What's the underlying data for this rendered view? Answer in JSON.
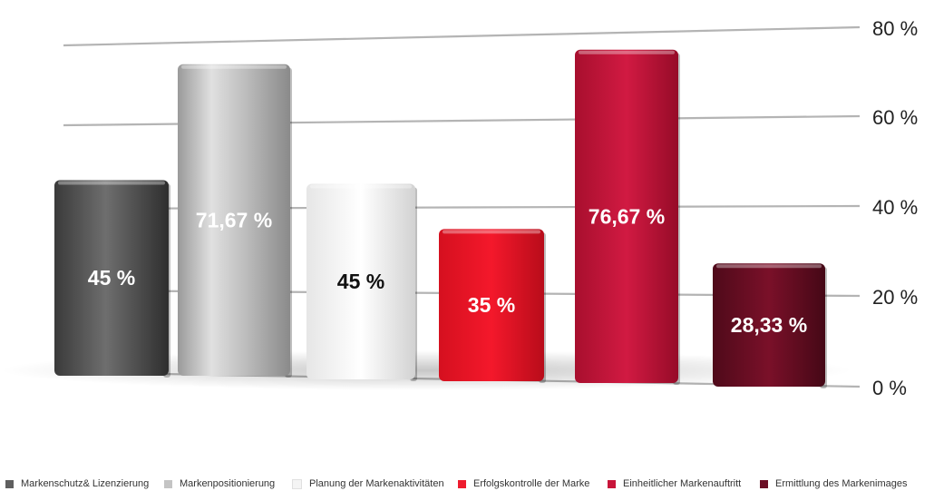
{
  "chart_data": {
    "type": "bar",
    "categories": [
      "Markenschutz& Lizenzierung",
      "Markenpositionierung",
      "Planung der Markenaktivitäten",
      "Erfolgskontrolle der Marke",
      "Einheitlicher Markenauftritt",
      "Ermittlung des Markenimages"
    ],
    "values": [
      45,
      71.67,
      45,
      35,
      76.67,
      28.33
    ],
    "data_labels": [
      "45 %",
      "71,67 %",
      "45 %",
      "35 %",
      "76,67 %",
      "28,33 %"
    ],
    "y_ticks": [
      0,
      20,
      40,
      60,
      80
    ],
    "y_tick_labels": [
      "0 %",
      "20 %",
      "40 %",
      "60 %",
      "80 %"
    ],
    "ylim": [
      0,
      80
    ],
    "grid": true,
    "legend_position": "bottom",
    "colors": [
      "#5f5f5f",
      "#c4c4c4",
      "#f4f4f4",
      "#ee1c2e",
      "#c8153a",
      "#6b0f25"
    ]
  }
}
